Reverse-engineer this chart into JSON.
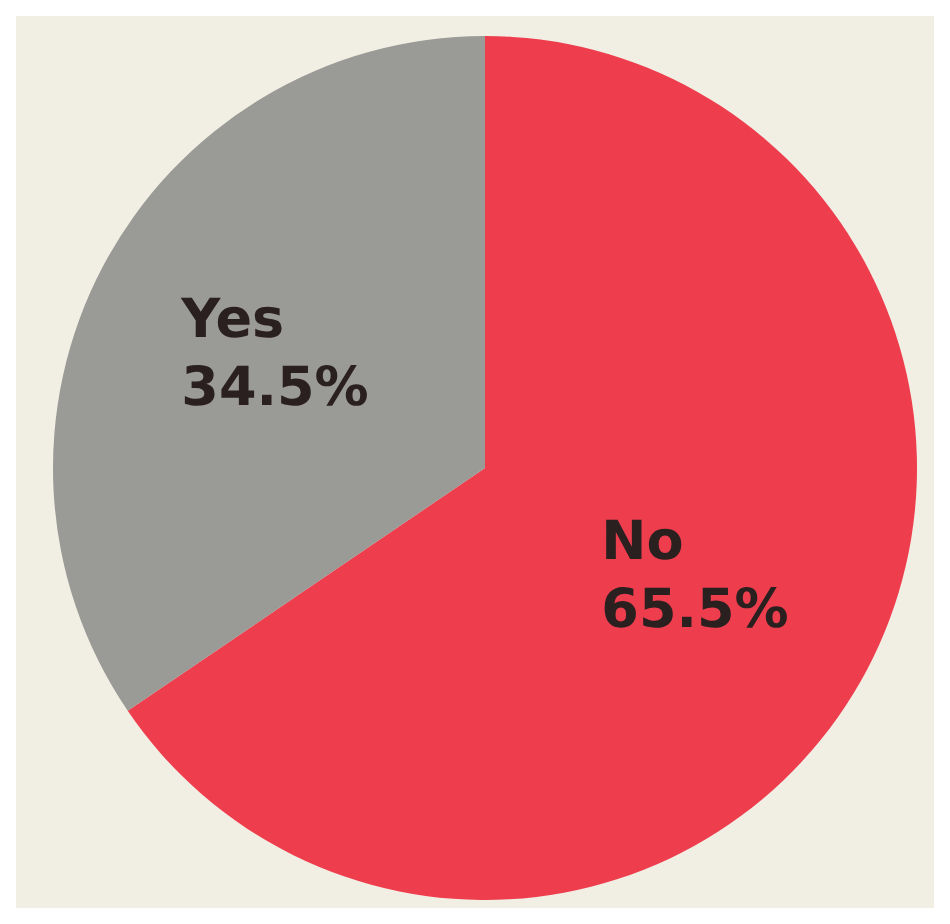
{
  "chart_data": {
    "type": "pie",
    "categories": [
      "No",
      "Yes"
    ],
    "values": [
      65.5,
      34.5
    ],
    "value_labels": [
      "65.5%",
      "34.5%"
    ],
    "colors": [
      "#ee3e4e",
      "#9a9a96"
    ],
    "legend": false
  }
}
